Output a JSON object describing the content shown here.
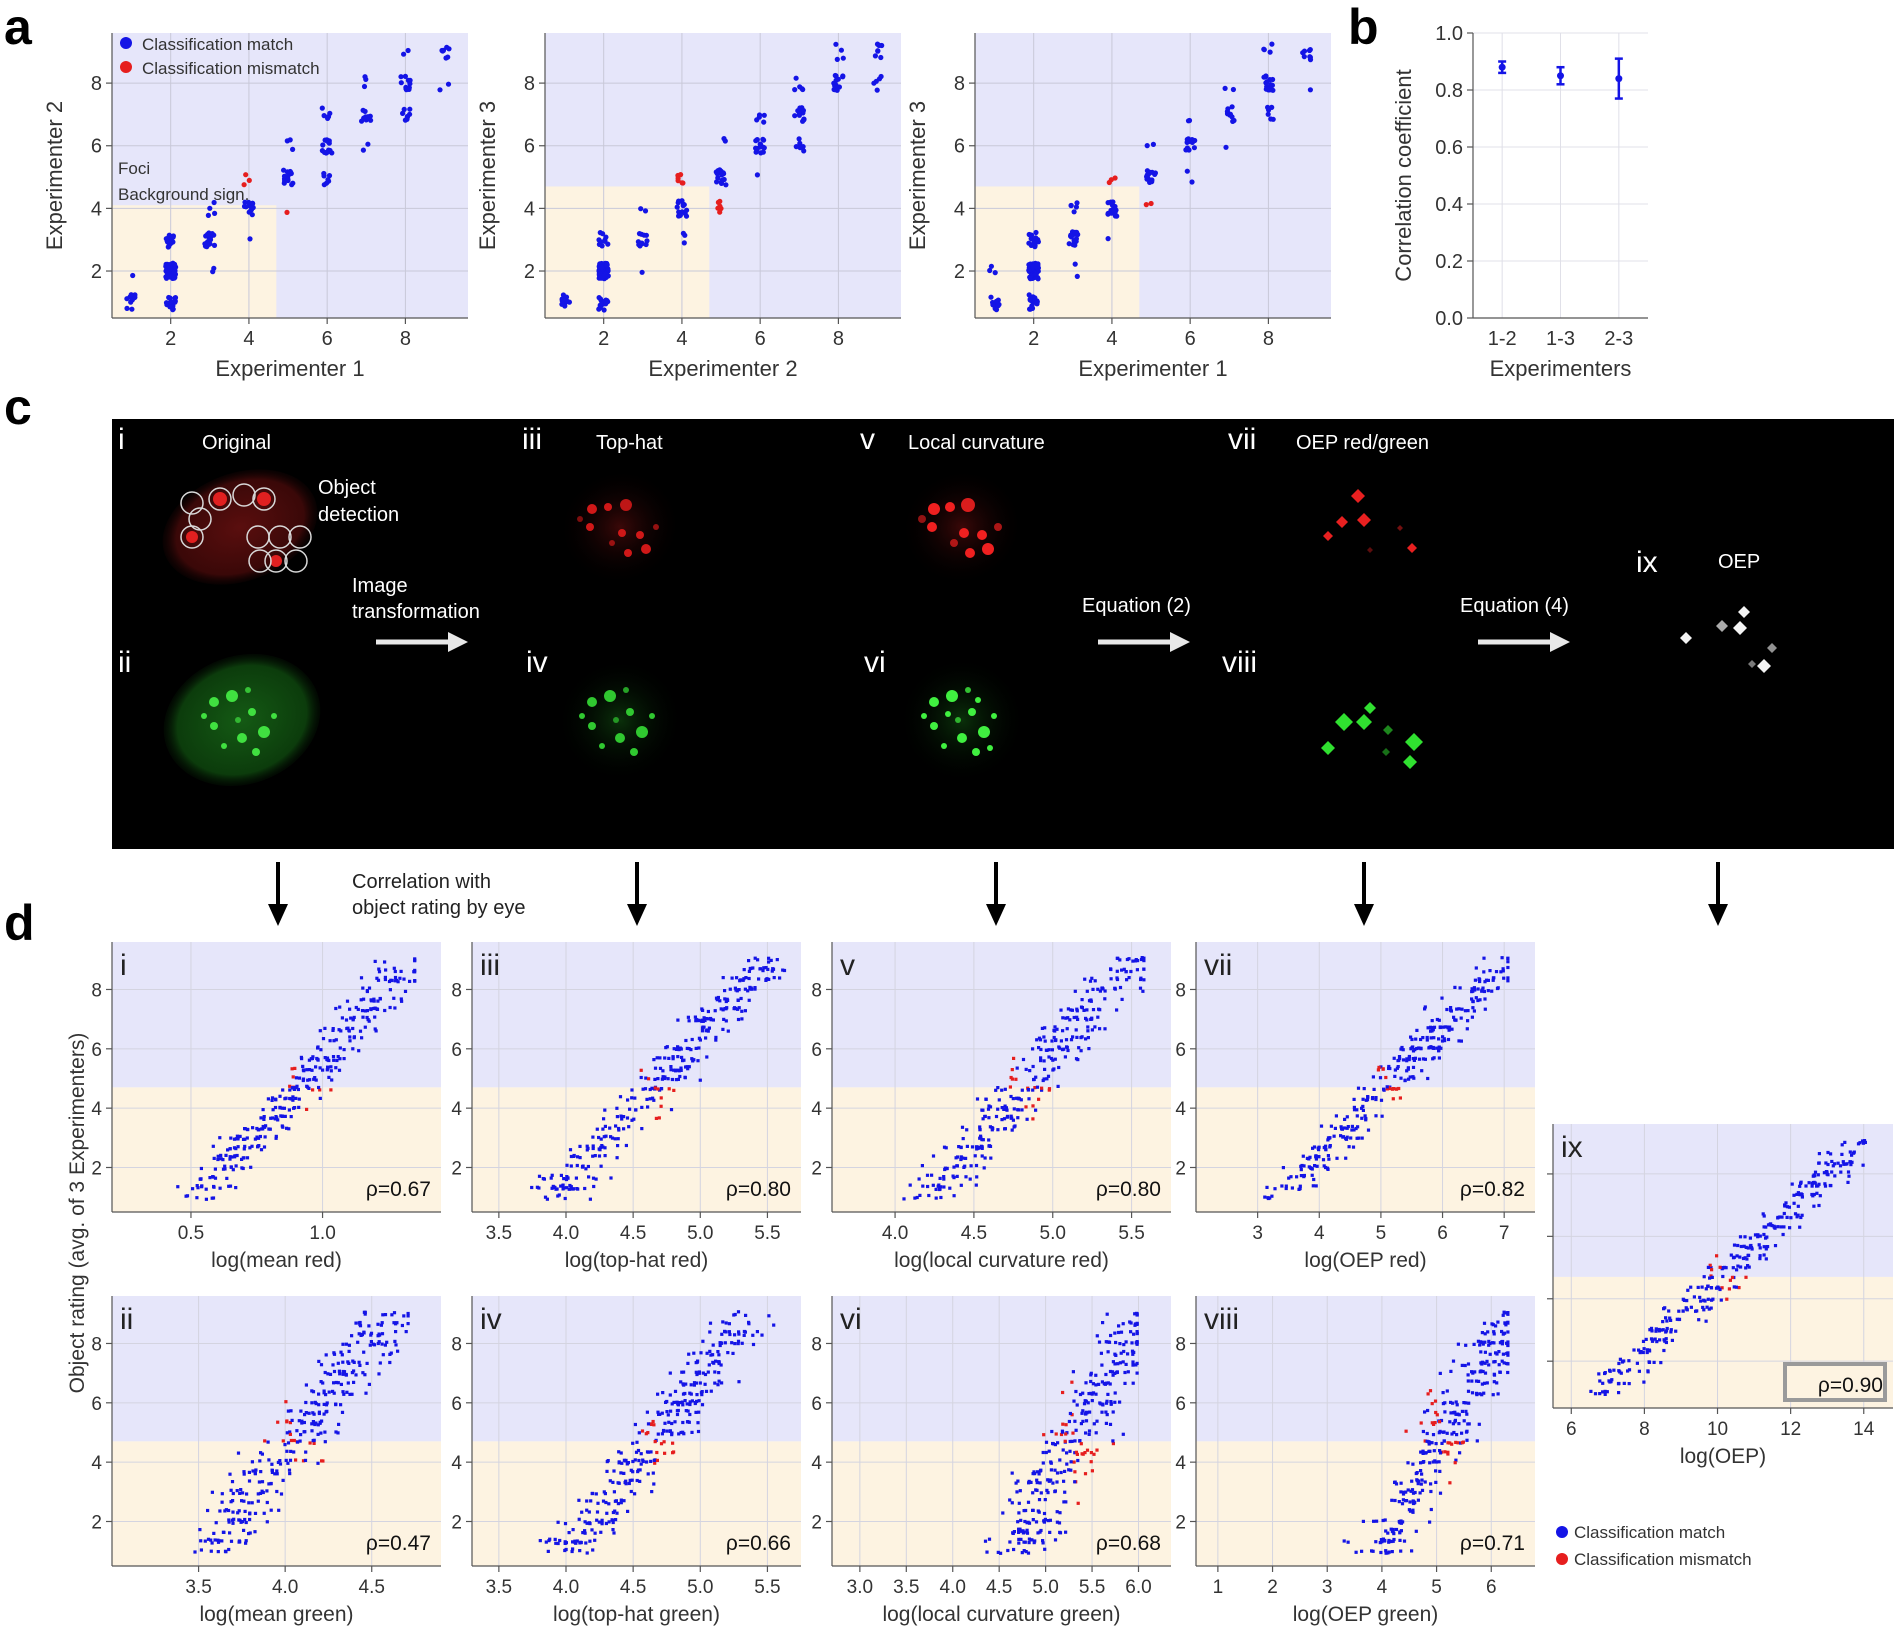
{
  "panel_letters": {
    "a": "a",
    "b": "b",
    "c": "c",
    "d": "d"
  },
  "colors": {
    "match": "#1414e6",
    "mismatch": "#e61e1e",
    "region_high": "#e6e6fa",
    "region_low": "#fdf3e1",
    "image_bg": "#000000"
  },
  "legend": {
    "match": "Classification match",
    "mismatch": "Classification mismatch"
  },
  "region_labels": {
    "foci": "Foci",
    "background": "Background sign."
  },
  "chart_data": [
    {
      "id": "a1",
      "type": "scatter",
      "xlabel": "Experimenter 1",
      "ylabel": "Experimenter 2",
      "xlim": [
        0.5,
        9.6
      ],
      "ylim": [
        0.5,
        9.6
      ],
      "xticks": [
        2,
        4,
        6,
        8
      ],
      "yticks": [
        2,
        4,
        6,
        8
      ],
      "threshold": {
        "x": 4.7,
        "y": 4.1
      }
    },
    {
      "id": "a2",
      "type": "scatter",
      "xlabel": "Experimenter 2",
      "ylabel": "Experimenter 3",
      "xlim": [
        0.5,
        9.6
      ],
      "ylim": [
        0.5,
        9.6
      ],
      "xticks": [
        2,
        4,
        6,
        8
      ],
      "yticks": [
        2,
        4,
        6,
        8
      ],
      "threshold": {
        "x": 4.7,
        "y": 4.7
      }
    },
    {
      "id": "a3",
      "type": "scatter",
      "xlabel": "Experimenter 1",
      "ylabel": "Experimenter 3",
      "xlim": [
        0.5,
        9.6
      ],
      "ylim": [
        0.5,
        9.6
      ],
      "xticks": [
        2,
        4,
        6,
        8
      ],
      "yticks": [
        2,
        4,
        6,
        8
      ],
      "threshold": {
        "x": 4.7,
        "y": 4.7
      }
    },
    {
      "id": "b",
      "type": "errorbar",
      "xlabel": "Experimenters",
      "ylabel": "Correlation coefficient",
      "categories": [
        "1-2",
        "1-3",
        "2-3"
      ],
      "values": [
        0.88,
        0.85,
        0.84
      ],
      "errors": [
        0.02,
        0.03,
        0.07
      ],
      "ylim": [
        0.0,
        1.0
      ],
      "yticks": [
        "0.0",
        "0.2",
        "0.4",
        "0.6",
        "0.8",
        "1.0"
      ]
    },
    {
      "id": "d-i",
      "type": "scatter",
      "roman": "i",
      "xlabel": "log(mean red)",
      "xticks": [
        "0.5",
        "1.0"
      ],
      "xlim": [
        0.2,
        1.45
      ],
      "rho": "ρ=0.67",
      "trend": [
        0.28,
        0.9,
        0.92,
        1.0
      ]
    },
    {
      "id": "d-iii",
      "type": "scatter",
      "roman": "iii",
      "xlabel": "log(top-hat red)",
      "xticks": [
        "3.5",
        "4.0",
        "4.5",
        "5.0",
        "5.5"
      ],
      "xlim": [
        3.3,
        5.75
      ],
      "rho": "ρ=0.80",
      "trend": [
        0.25,
        0.9,
        0.95,
        0.95
      ]
    },
    {
      "id": "d-v",
      "type": "scatter",
      "roman": "v",
      "xlabel": "log(local curvature red)",
      "xticks": [
        "4.0",
        "4.5",
        "5.0",
        "5.5"
      ],
      "xlim": [
        3.6,
        5.75
      ],
      "rho": "ρ=0.80",
      "trend": [
        0.3,
        0.88,
        0.92,
        1.05
      ]
    },
    {
      "id": "d-vii",
      "type": "scatter",
      "roman": "vii",
      "xlabel": "log(OEP red)",
      "xticks": [
        "3",
        "4",
        "5",
        "6",
        "7"
      ],
      "xlim": [
        2.0,
        7.5
      ],
      "rho": "ρ=0.82",
      "trend": [
        0.25,
        0.92,
        0.92,
        0.9
      ]
    },
    {
      "id": "d-ii",
      "type": "scatter",
      "roman": "ii",
      "xlabel": "log(mean green)",
      "xticks": [
        "3.5",
        "4.0",
        "4.5"
      ],
      "xlim": [
        3.0,
        4.9
      ],
      "rho": "ρ=0.47",
      "trend": [
        0.3,
        0.85,
        0.9,
        1.2
      ]
    },
    {
      "id": "d-iv",
      "type": "scatter",
      "roman": "iv",
      "xlabel": "log(top-hat green)",
      "xticks": [
        "3.5",
        "4.0",
        "4.5",
        "5.0",
        "5.5"
      ],
      "xlim": [
        3.3,
        5.75
      ],
      "rho": "ρ=0.66",
      "trend": [
        0.3,
        0.85,
        0.95,
        1.1
      ]
    },
    {
      "id": "d-vi",
      "type": "scatter",
      "roman": "vi",
      "xlabel": "log(local curvature green)",
      "xticks": [
        "3.0",
        "3.5",
        "4.0",
        "4.5",
        "5.0",
        "5.5",
        "6.0"
      ],
      "xlim": [
        2.7,
        6.35
      ],
      "rho": "ρ=0.68",
      "trend": [
        0.55,
        0.9,
        0.9,
        1.1
      ]
    },
    {
      "id": "d-viii",
      "type": "scatter",
      "roman": "viii",
      "xlabel": "log(OEP green)",
      "xticks": [
        "1",
        "2",
        "3",
        "4",
        "5",
        "6"
      ],
      "xlim": [
        0.6,
        6.8
      ],
      "rho": "ρ=0.71",
      "trend": [
        0.55,
        0.92,
        0.92,
        1.1
      ]
    },
    {
      "id": "d-ix",
      "type": "scatter",
      "roman": "ix",
      "xlabel": "log(OEP)",
      "xticks": [
        "6",
        "8",
        "10",
        "12",
        "14"
      ],
      "xlim": [
        5.5,
        14.8
      ],
      "rho": "ρ=0.90",
      "trend": [
        0.15,
        0.9,
        0.95,
        0.85
      ]
    }
  ],
  "d_ylabel": "Object rating (avg. of 3 Experimenters)",
  "d_yticks": [
    "2",
    "4",
    "6",
    "8"
  ],
  "c_panel": {
    "labels": {
      "i": "i",
      "ii": "ii",
      "iii": "iii",
      "iv": "iv",
      "v": "v",
      "vi": "vi",
      "vii": "vii",
      "viii": "viii",
      "ix": "ix"
    },
    "titles": {
      "original": "Original",
      "tophat": "Top-hat",
      "curvature": "Local curvature",
      "oep_rg": "OEP red/green",
      "oep": "OEP"
    },
    "object_detection": [
      "Object",
      "detection"
    ],
    "image_transformation": [
      "Image",
      "transformation"
    ],
    "equation2": "Equation (2)",
    "equation4": "Equation (4)"
  },
  "correlation_note": [
    "Correlation with",
    "object rating by eye"
  ]
}
